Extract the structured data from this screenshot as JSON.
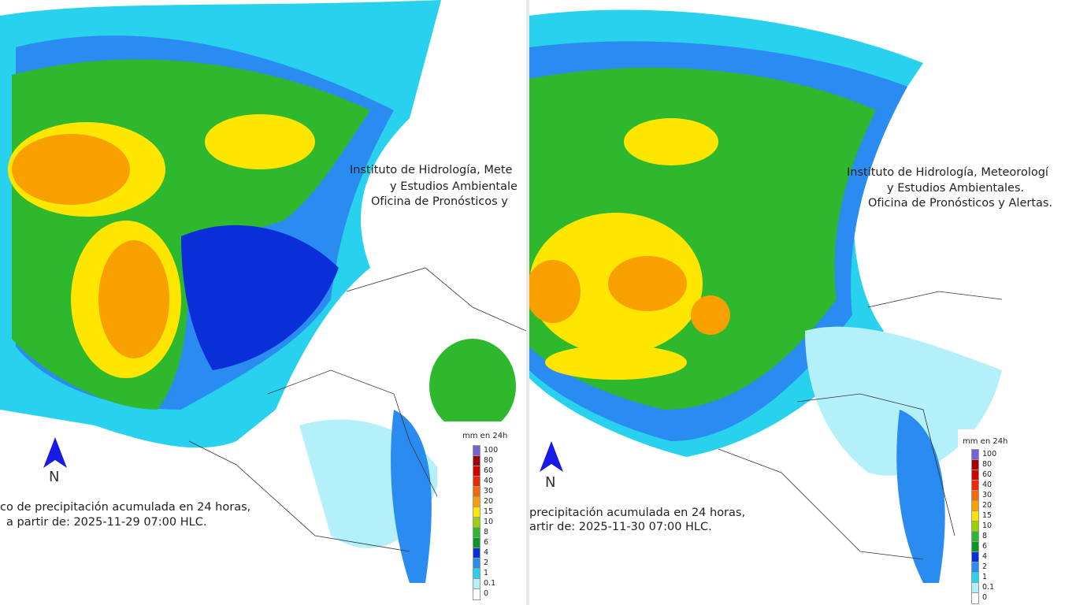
{
  "panels": [
    {
      "institute": [
        "Instituto de Hidrología, Mete",
        "y Estudios Ambientale",
        "Oficina de Pronósticos y"
      ],
      "north": "N",
      "caption": [
        "co de precipitación acumulada en 24 horas,",
        "a partir de: 2025-11-29 07:00 HLC."
      ],
      "legend": {
        "title": "mm en 24h",
        "items": [
          {
            "label": "100",
            "color": "#7b5fd6"
          },
          {
            "label": "80",
            "color": "#a00000"
          },
          {
            "label": "60",
            "color": "#d20000"
          },
          {
            "label": "40",
            "color": "#f02800"
          },
          {
            "label": "30",
            "color": "#f46a00"
          },
          {
            "label": "20",
            "color": "#f7a000"
          },
          {
            "label": "15",
            "color": "#ffe600"
          },
          {
            "label": "10",
            "color": "#9ad200"
          },
          {
            "label": "8",
            "color": "#2eb82e"
          },
          {
            "label": "6",
            "color": "#08962a"
          },
          {
            "label": "4",
            "color": "#0a2fd8"
          },
          {
            "label": "2",
            "color": "#2a8cf0"
          },
          {
            "label": "1",
            "color": "#28d2ee"
          },
          {
            "label": "0.1",
            "color": "#b4f0fa"
          },
          {
            "label": "0",
            "color": "#ffffff"
          }
        ]
      }
    },
    {
      "institute": [
        "Instituto de Hidrología, Meteorologí",
        "y Estudios Ambientales.",
        "Oficina de Pronósticos y Alertas."
      ],
      "north": "N",
      "caption": [
        "precipitación acumulada en 24 horas,",
        "artir de: 2025-11-30 07:00 HLC."
      ],
      "legend": {
        "title": "mm en 24h",
        "items": [
          {
            "label": "100",
            "color": "#7b5fd6"
          },
          {
            "label": "80",
            "color": "#a00000"
          },
          {
            "label": "60",
            "color": "#d20000"
          },
          {
            "label": "40",
            "color": "#f02800"
          },
          {
            "label": "30",
            "color": "#f46a00"
          },
          {
            "label": "20",
            "color": "#f7a000"
          },
          {
            "label": "15",
            "color": "#ffe600"
          },
          {
            "label": "10",
            "color": "#9ad200"
          },
          {
            "label": "8",
            "color": "#2eb82e"
          },
          {
            "label": "6",
            "color": "#08962a"
          },
          {
            "label": "4",
            "color": "#0a2fd8"
          },
          {
            "label": "2",
            "color": "#2a8cf0"
          },
          {
            "label": "1",
            "color": "#28d2ee"
          },
          {
            "label": "0.1",
            "color": "#b4f0fa"
          },
          {
            "label": "0",
            "color": "#ffffff"
          }
        ]
      }
    }
  ]
}
